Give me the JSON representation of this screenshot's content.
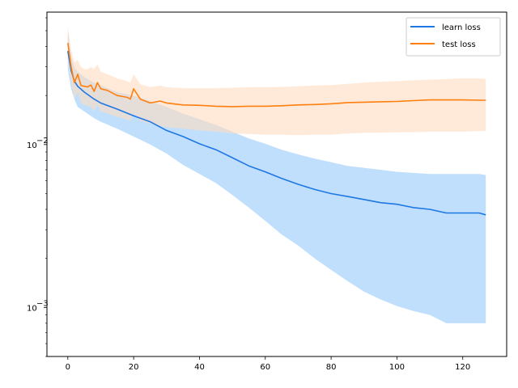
{
  "chart_data": {
    "type": "line",
    "title": "",
    "xlabel": "",
    "ylabel": "",
    "yscale": "log",
    "xlim": [
      -6.35,
      133.35
    ],
    "ylim": [
      0.0005,
      0.065
    ],
    "xticks": [
      0,
      20,
      40,
      60,
      80,
      100,
      120
    ],
    "xtick_labels": [
      "0",
      "20",
      "40",
      "60",
      "80",
      "100",
      "120"
    ],
    "yticks_major": [
      0.01,
      0.001
    ],
    "ytick_labels_base": "10",
    "ytick_labels_exp": [
      "−2",
      "−3"
    ],
    "grid": false,
    "legend_position": "top-right",
    "series": [
      {
        "name": "learn loss",
        "color": "#1f77e4",
        "band_color": "#a9d4fb",
        "x": [
          0,
          1,
          2,
          3,
          5,
          8,
          10,
          15,
          20,
          25,
          30,
          35,
          40,
          45,
          50,
          55,
          60,
          65,
          70,
          75,
          80,
          85,
          90,
          95,
          100,
          105,
          110,
          115,
          120,
          125,
          127
        ],
        "mean": [
          0.0375,
          0.0285,
          0.0245,
          0.0228,
          0.021,
          0.019,
          0.018,
          0.0165,
          0.015,
          0.0138,
          0.0122,
          0.0112,
          0.0101,
          0.0093,
          0.0083,
          0.0074,
          0.0068,
          0.0062,
          0.0057,
          0.0053,
          0.005,
          0.0048,
          0.0046,
          0.0044,
          0.0043,
          0.0041,
          0.004,
          0.0038,
          0.0038,
          0.0038,
          0.0037
        ],
        "upper": [
          0.05,
          0.035,
          0.03,
          0.028,
          0.026,
          0.024,
          0.023,
          0.021,
          0.02,
          0.0185,
          0.017,
          0.0155,
          0.0143,
          0.0132,
          0.012,
          0.0109,
          0.0101,
          0.0093,
          0.0087,
          0.0082,
          0.0078,
          0.0074,
          0.0072,
          0.007,
          0.0068,
          0.0067,
          0.0066,
          0.0066,
          0.0066,
          0.0066,
          0.0065
        ],
        "lower": [
          0.029,
          0.022,
          0.019,
          0.017,
          0.016,
          0.0145,
          0.0138,
          0.0125,
          0.0112,
          0.01,
          0.0088,
          0.0075,
          0.0066,
          0.0058,
          0.0049,
          0.0041,
          0.0034,
          0.0028,
          0.0024,
          0.002,
          0.0017,
          0.00145,
          0.00125,
          0.00112,
          0.00102,
          0.00095,
          0.0009,
          0.0008,
          0.0008,
          0.0008,
          0.0008
        ]
      },
      {
        "name": "test loss",
        "color": "#ff7f0e",
        "band_color": "#ffdcbf",
        "x": [
          0,
          1,
          2,
          3,
          4,
          5,
          6,
          7,
          8,
          9,
          10,
          12,
          15,
          18,
          19,
          20,
          22,
          25,
          28,
          30,
          35,
          40,
          45,
          50,
          55,
          60,
          65,
          70,
          75,
          80,
          85,
          90,
          95,
          100,
          105,
          110,
          115,
          120,
          125,
          127
        ],
        "mean": [
          0.042,
          0.03,
          0.024,
          0.027,
          0.023,
          0.0228,
          0.0226,
          0.0232,
          0.0212,
          0.024,
          0.022,
          0.0215,
          0.02,
          0.0195,
          0.019,
          0.022,
          0.019,
          0.018,
          0.0185,
          0.018,
          0.0175,
          0.0174,
          0.0172,
          0.0171,
          0.0172,
          0.0172,
          0.0173,
          0.0175,
          0.0176,
          0.0178,
          0.0181,
          0.0182,
          0.0183,
          0.0184,
          0.0186,
          0.0188,
          0.0188,
          0.0188,
          0.0187,
          0.0187
        ],
        "upper": [
          0.053,
          0.038,
          0.032,
          0.033,
          0.03,
          0.029,
          0.029,
          0.03,
          0.029,
          0.031,
          0.028,
          0.027,
          0.0255,
          0.0245,
          0.024,
          0.027,
          0.0235,
          0.0225,
          0.023,
          0.0225,
          0.0222,
          0.0222,
          0.0222,
          0.0223,
          0.0225,
          0.0225,
          0.0226,
          0.0228,
          0.023,
          0.0232,
          0.0236,
          0.024,
          0.0243,
          0.0245,
          0.0248,
          0.025,
          0.0252,
          0.0255,
          0.0255,
          0.0252
        ],
        "lower": [
          0.032,
          0.024,
          0.019,
          0.021,
          0.018,
          0.0175,
          0.0172,
          0.017,
          0.016,
          0.0175,
          0.016,
          0.0155,
          0.0148,
          0.0142,
          0.014,
          0.0155,
          0.014,
          0.0135,
          0.013,
          0.0128,
          0.0125,
          0.0122,
          0.012,
          0.0117,
          0.0116,
          0.0115,
          0.0115,
          0.0114,
          0.0115,
          0.0115,
          0.0117,
          0.0118,
          0.0118,
          0.0119,
          0.0119,
          0.012,
          0.012,
          0.012,
          0.0121,
          0.0121
        ]
      }
    ]
  }
}
